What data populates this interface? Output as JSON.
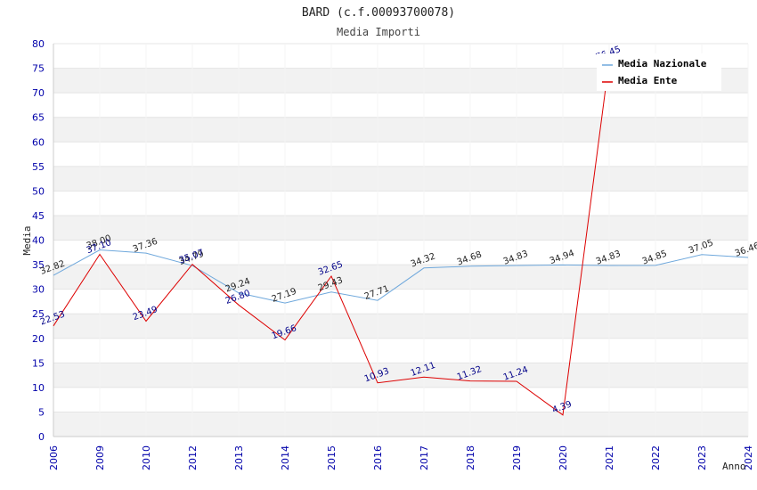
{
  "chart_data": {
    "type": "line",
    "title": "BARD (c.f.00093700078)",
    "subtitle": "Media Importi",
    "xlabel": "Anno",
    "ylabel": "Media",
    "ylim": [
      0,
      80
    ],
    "yticks": [
      0,
      5,
      10,
      15,
      20,
      25,
      30,
      35,
      40,
      45,
      50,
      55,
      60,
      65,
      70,
      75,
      80
    ],
    "categories": [
      "2006",
      "2009",
      "2010",
      "2012",
      "2013",
      "2014",
      "2015",
      "2016",
      "2017",
      "2018",
      "2019",
      "2020",
      "2021",
      "2022",
      "2023",
      "2024"
    ],
    "legend_position": "top-right",
    "grid": "horizontal alternating bands",
    "series": [
      {
        "name": "Media Nazionale",
        "color": "#6fa8dc",
        "values": [
          32.82,
          38.0,
          37.36,
          34.79,
          29.24,
          27.19,
          29.43,
          27.71,
          34.32,
          34.68,
          34.83,
          34.94,
          34.83,
          34.85,
          37.05,
          36.46
        ],
        "labels": [
          "32.82",
          "38.00",
          "37.36",
          "34.79",
          "29.24",
          "27.19",
          "29.43",
          "27.71",
          "34.32",
          "34.68",
          "34.83",
          "34.94",
          "34.83",
          "34.85",
          "37.05",
          "36.46"
        ]
      },
      {
        "name": "Media Ente",
        "color": "#dd0000",
        "values": [
          22.53,
          37.1,
          23.49,
          35.07,
          26.8,
          19.66,
          32.65,
          10.93,
          12.11,
          11.32,
          11.24,
          4.39,
          76.45,
          null,
          null,
          null
        ],
        "labels": [
          "22.53",
          "37.10",
          "23.49",
          "35.07",
          "26.80",
          "19.66",
          "32.65",
          "10.93",
          "12.11",
          "11.32",
          "11.24",
          "4.39",
          "76.45",
          "",
          "",
          ""
        ]
      }
    ]
  }
}
